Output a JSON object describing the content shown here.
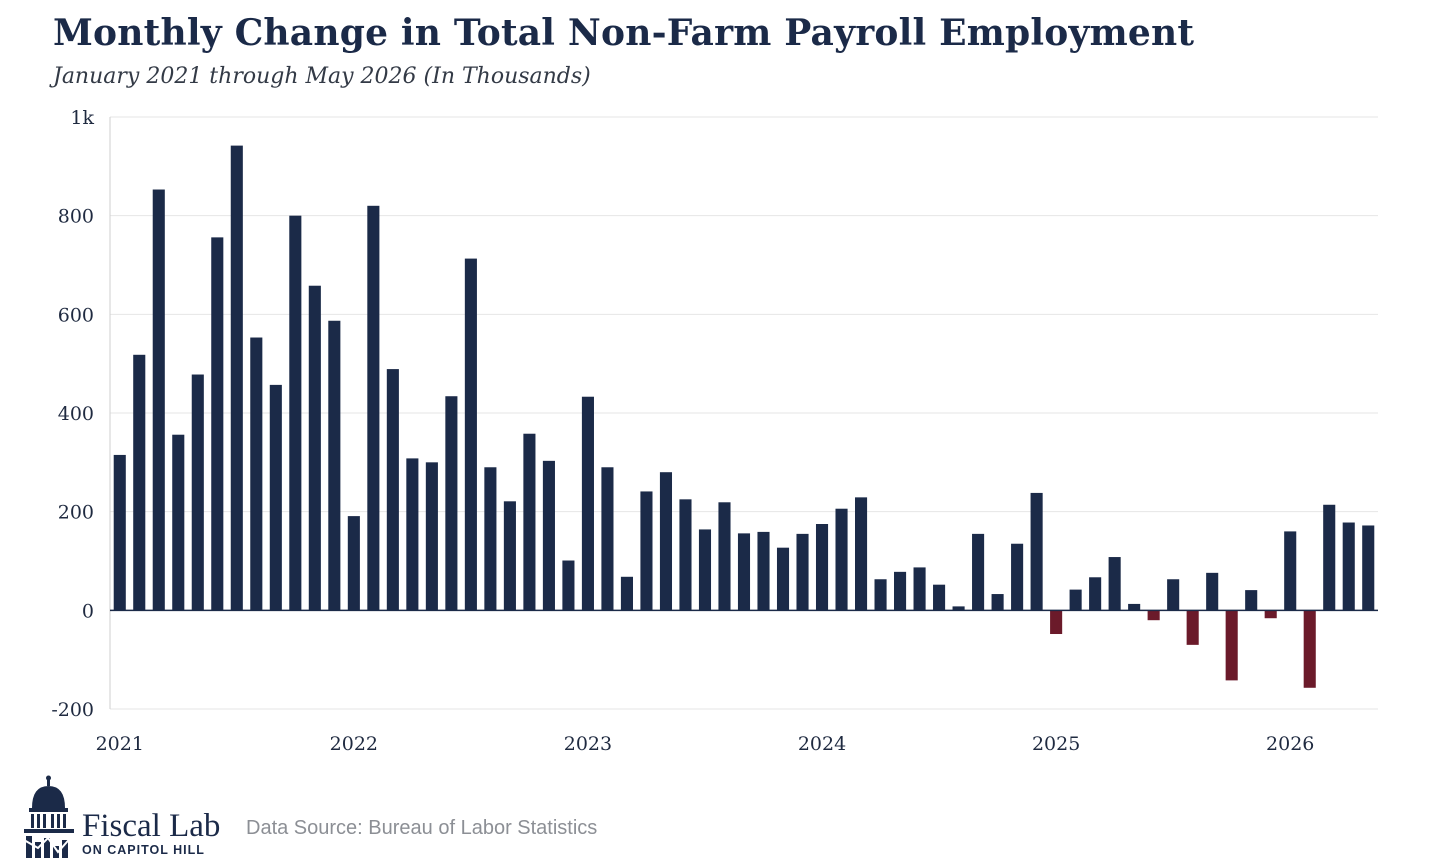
{
  "chart_data": {
    "type": "bar",
    "title": "Monthly Change in Total Non-Farm Payroll Employment",
    "subtitle": "January 2021 through May 2026 (In Thousands)",
    "xlabel": "",
    "ylabel": "",
    "ylim": [
      -200,
      1000
    ],
    "yticks": [
      -200,
      0,
      200,
      400,
      600,
      800,
      1000
    ],
    "ytick_labels": [
      "-200",
      "0",
      "200",
      "400",
      "600",
      "800",
      "1k"
    ],
    "xtick_labels": [
      "2021",
      "2022",
      "2023",
      "2024",
      "2025",
      "2026"
    ],
    "grid": true,
    "legend": "none",
    "colors": {
      "positive": "#1b2a48",
      "negative": "#6b1a2a",
      "grid": "#e6e6e6"
    },
    "categories": [
      "2021-01",
      "2021-02",
      "2021-03",
      "2021-04",
      "2021-05",
      "2021-06",
      "2021-07",
      "2021-08",
      "2021-09",
      "2021-10",
      "2021-11",
      "2021-12",
      "2022-01",
      "2022-02",
      "2022-03",
      "2022-04",
      "2022-05",
      "2022-06",
      "2022-07",
      "2022-08",
      "2022-09",
      "2022-10",
      "2022-11",
      "2022-12",
      "2023-01",
      "2023-02",
      "2023-03",
      "2023-04",
      "2023-05",
      "2023-06",
      "2023-07",
      "2023-08",
      "2023-09",
      "2023-10",
      "2023-11",
      "2023-12",
      "2024-01",
      "2024-02",
      "2024-03",
      "2024-04",
      "2024-05",
      "2024-06",
      "2024-07",
      "2024-08",
      "2024-09",
      "2024-10",
      "2024-11",
      "2024-12",
      "2025-01",
      "2025-02",
      "2025-03",
      "2025-04",
      "2025-05",
      "2025-06",
      "2025-07",
      "2025-08",
      "2025-09",
      "2025-10",
      "2025-11",
      "2025-12",
      "2026-01",
      "2026-02",
      "2026-03",
      "2026-04",
      "2026-05"
    ],
    "values": [
      315,
      518,
      853,
      356,
      478,
      756,
      942,
      553,
      457,
      800,
      658,
      587,
      191,
      820,
      489,
      308,
      300,
      434,
      713,
      290,
      221,
      358,
      303,
      101,
      433,
      290,
      68,
      241,
      280,
      225,
      164,
      219,
      156,
      159,
      127,
      155,
      175,
      206,
      229,
      63,
      78,
      87,
      52,
      8,
      155,
      33,
      135,
      238,
      -48,
      42,
      67,
      108,
      13,
      -20,
      63,
      -70,
      76,
      -142,
      41,
      -16,
      160,
      -157,
      214,
      178,
      172
    ]
  },
  "footer": {
    "source": "Data Source: Bureau of Labor Statistics",
    "logo_name": "Fiscal Lab",
    "logo_sub": "ON CAPITOL HILL"
  }
}
